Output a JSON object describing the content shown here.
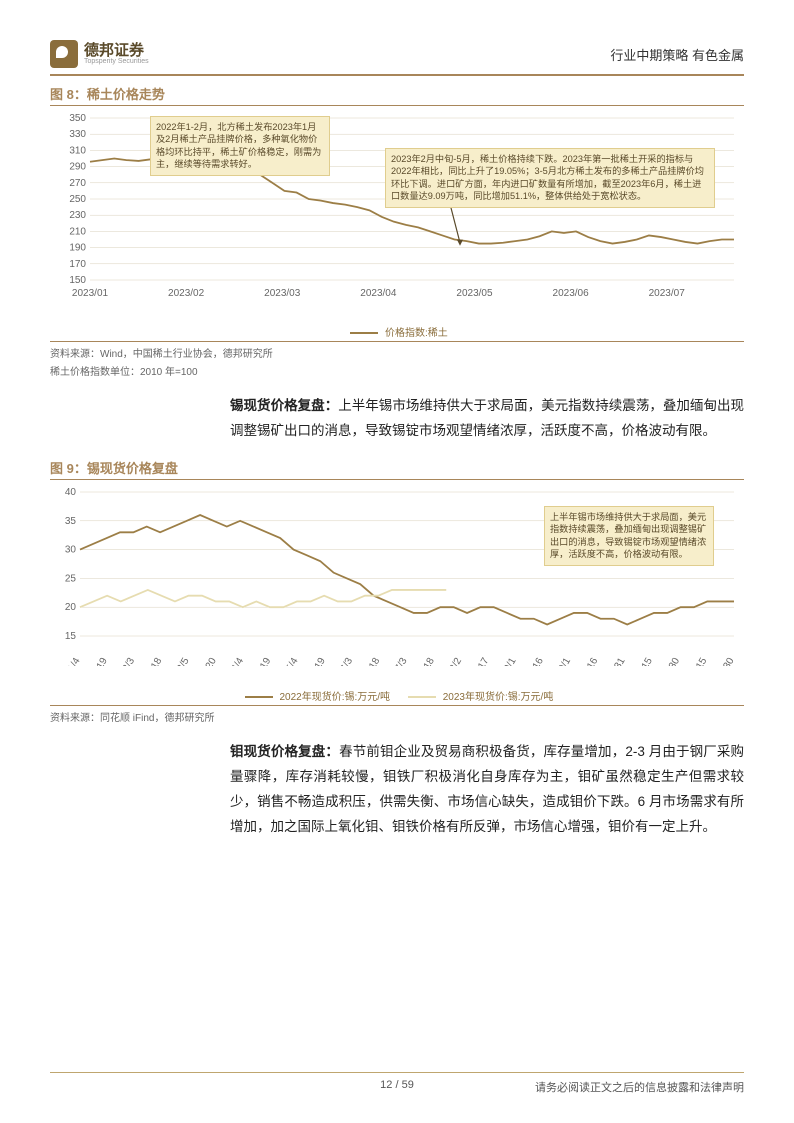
{
  "header": {
    "company_cn": "德邦证券",
    "company_en": "Topsperity Securities",
    "right": "行业中期策略 有色金属"
  },
  "fig8": {
    "title": "图 8：稀土价格走势",
    "type": "line",
    "ylim": [
      150,
      350
    ],
    "ytick_step": 20,
    "xticks": [
      "2023/01",
      "2023/02",
      "2023/03",
      "2023/04",
      "2023/05",
      "2023/06",
      "2023/07"
    ],
    "series_color": "#9c7e46",
    "grid_color": "#d9d0bc",
    "background_color": "#ffffff",
    "data": [
      296,
      298,
      300,
      298,
      297,
      299,
      300,
      298,
      296,
      295,
      294,
      293,
      292,
      290,
      280,
      270,
      260,
      258,
      250,
      248,
      245,
      243,
      240,
      236,
      228,
      222,
      218,
      215,
      210,
      205,
      200,
      198,
      195,
      195,
      196,
      198,
      200,
      204,
      210,
      208,
      210,
      203,
      198,
      195,
      197,
      200,
      205,
      203,
      200,
      197,
      195,
      198,
      200,
      200
    ],
    "callout1": "2022年1-2月，北方稀土发布2023年1月及2月稀土产品挂牌价格，多种氧化物价格均环比持平，稀土矿价格稳定，刚需为主，继续等待需求转好。",
    "callout2": "2023年2月中旬-5月，稀土价格持续下跌。2023年第一批稀土开采的指标与2022年相比，同比上升了19.05%；3-5月北方稀土发布的多稀土产品挂牌价均环比下调。进口矿方面，年内进口矿数量有所增加，截至2023年6月，稀土进口数量达9.09万吨，同比增加51.1%，整体供给处于宽松状态。",
    "legend": "价格指数:稀土",
    "source1": "资料来源：Wind，中国稀土行业协会，德邦研究所",
    "source2": "稀土价格指数单位：2010 年=100"
  },
  "para1": {
    "lead": "锡现货价格复盘：",
    "text": "上半年锡市场维持供大于求局面，美元指数持续震荡，叠加缅甸出现调整锡矿出口的消息，导致锡锭市场观望情绪浓厚，活跃度不高，价格波动有限。"
  },
  "fig9": {
    "title": "图 9：锡现货价格复盘",
    "type": "line",
    "ylim": [
      15,
      40
    ],
    "ytick_step": 5,
    "xticks": [
      "1/4",
      "1/19",
      "2/3",
      "2/18",
      "3/5",
      "3/20",
      "4/4",
      "4/19",
      "5/4",
      "5/19",
      "6/3",
      "6/18",
      "7/3",
      "7/18",
      "8/2",
      "8/17",
      "9/1",
      "9/16",
      "10/1",
      "10/16",
      "10/31",
      "11/15",
      "11/30",
      "12/15",
      "12/30"
    ],
    "colors": {
      "s2022": "#9c7e46",
      "s2023": "#e6dcb0"
    },
    "grid_color": "#d9d0bc",
    "data2022": [
      30,
      31,
      32,
      33,
      33,
      34,
      33,
      34,
      35,
      36,
      35,
      34,
      35,
      34,
      33,
      32,
      30,
      29,
      28,
      26,
      25,
      24,
      22,
      21,
      20,
      19,
      19,
      20,
      20,
      19,
      20,
      20,
      19,
      18,
      18,
      17,
      18,
      19,
      19,
      18,
      18,
      17,
      18,
      19,
      19,
      20,
      20,
      21,
      21,
      21
    ],
    "data2023": [
      20,
      21,
      22,
      21,
      22,
      23,
      22,
      21,
      22,
      22,
      21,
      21,
      20,
      21,
      20,
      20,
      21,
      21,
      22,
      21,
      21,
      22,
      22,
      23,
      23,
      23,
      23,
      23
    ],
    "legend2022": "2022年现货价:锡:万元/吨",
    "legend2023": "2023年现货价:锡:万元/吨",
    "callout": "上半年锡市场维持供大于求局面，美元指数持续震荡，叠加缅甸出现调整锡矿出口的消息，导致锡锭市场观望情绪浓厚，活跃度不高，价格波动有限。",
    "source": "资料来源：同花顺 iFind，德邦研究所"
  },
  "para2": {
    "lead": "钼现货价格复盘：",
    "text": "春节前钼企业及贸易商积极备货，库存量增加，2-3 月由于钢厂采购量骤降，库存消耗较慢，钼铁厂积极消化自身库存为主，钼矿虽然稳定生产但需求较少，销售不畅造成积压，供需失衡、市场信心缺失，造成钼价下跌。6 月市场需求有所增加，加之国际上氧化钼、钼铁价格有所反弹，市场信心增强，钼价有一定上升。"
  },
  "footer": {
    "page": "12 / 59",
    "disclaimer": "请务必阅读正文之后的信息披露和法律声明"
  }
}
